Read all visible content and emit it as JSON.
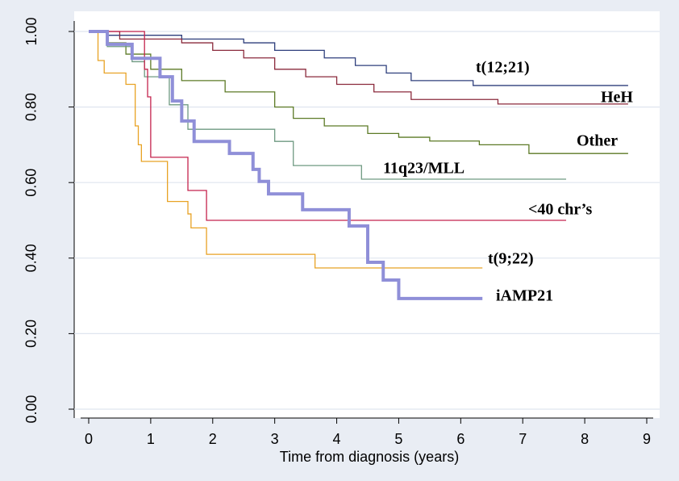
{
  "chart_data": {
    "type": "step",
    "xlabel": "Time from diagnosis (years)",
    "xlim": [
      0,
      9
    ],
    "xticks": [
      0,
      1,
      2,
      3,
      4,
      5,
      6,
      7,
      8,
      9
    ],
    "ylim": [
      0,
      1
    ],
    "yticks": [
      {
        "value": 0,
        "label": "0.00"
      },
      {
        "value": 0.2,
        "label": "0.20"
      },
      {
        "value": 0.4,
        "label": "0.40"
      },
      {
        "value": 0.6,
        "label": "0.60"
      },
      {
        "value": 0.8,
        "label": "0.80"
      },
      {
        "value": 1,
        "label": "1.00"
      }
    ],
    "grid": true,
    "series": [
      {
        "name": "t(12;21)",
        "color": "#2e3f7c",
        "width": 1.3,
        "x": [
          0,
          0.3,
          1.5,
          2.5,
          3,
          3.8,
          4.3,
          4.8,
          5.2,
          6.2,
          8.7
        ],
        "values": [
          1,
          0.99,
          0.98,
          0.97,
          0.95,
          0.93,
          0.91,
          0.89,
          0.87,
          0.857,
          0.857
        ]
      },
      {
        "name": "HeH",
        "color": "#8b2a3c",
        "width": 1.3,
        "x": [
          0,
          0.5,
          1.5,
          2,
          2.5,
          3,
          3.5,
          4,
          4.6,
          5.2,
          6.6,
          8.7
        ],
        "values": [
          1,
          0.98,
          0.97,
          0.95,
          0.93,
          0.9,
          0.88,
          0.86,
          0.84,
          0.82,
          0.808,
          0.808
        ]
      },
      {
        "name": "Other",
        "color": "#5c7a26",
        "width": 1.3,
        "x": [
          0,
          0.3,
          0.6,
          1,
          1.5,
          2.2,
          3,
          3.3,
          3.8,
          4.5,
          5,
          5.5,
          6.3,
          7.1,
          8.7
        ],
        "values": [
          1,
          0.97,
          0.94,
          0.9,
          0.87,
          0.84,
          0.8,
          0.77,
          0.75,
          0.73,
          0.72,
          0.71,
          0.7,
          0.677,
          0.677
        ]
      },
      {
        "name": "11q23/MLL",
        "color": "#6f9a82",
        "width": 1.3,
        "x": [
          0,
          0.3,
          0.7,
          0.9,
          1.3,
          1.6,
          3,
          3.3,
          4.4,
          7.7
        ],
        "values": [
          1,
          0.96,
          0.92,
          0.88,
          0.806,
          0.741,
          0.709,
          0.645,
          0.609,
          0.609
        ]
      },
      {
        "name": "<40 chr’s",
        "color": "#c4234d",
        "width": 1.3,
        "x": [
          0,
          0.9,
          0.95,
          1,
          1.6,
          1.9,
          7.7
        ],
        "values": [
          1,
          0.9,
          0.827,
          0.667,
          0.579,
          0.5,
          0.5
        ]
      },
      {
        "name": "t(9;22)",
        "color": "#e8a224",
        "width": 1.3,
        "x": [
          0,
          0.15,
          0.25,
          0.6,
          0.75,
          0.8,
          0.85,
          1.27,
          1.6,
          1.65,
          1.9,
          3.65,
          6.35
        ],
        "values": [
          1,
          0.923,
          0.89,
          0.86,
          0.75,
          0.7,
          0.656,
          0.55,
          0.517,
          0.48,
          0.41,
          0.374,
          0.374
        ]
      },
      {
        "name": "iAMP21",
        "color": "#8f8fd8",
        "width": 4,
        "x": [
          0,
          0.3,
          0.7,
          1.15,
          1.35,
          1.5,
          1.7,
          2.27,
          2.65,
          2.75,
          2.9,
          3.45,
          4.2,
          4.5,
          4.75,
          5,
          6.35
        ],
        "values": [
          1,
          0.966,
          0.929,
          0.88,
          0.816,
          0.763,
          0.709,
          0.677,
          0.635,
          0.603,
          0.57,
          0.528,
          0.485,
          0.389,
          0.342,
          0.293,
          0.293
        ]
      }
    ]
  }
}
